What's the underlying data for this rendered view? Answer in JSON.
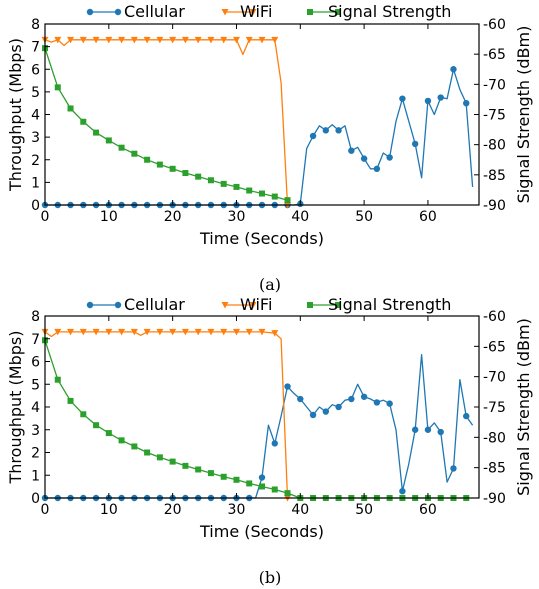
{
  "colors": {
    "cellular": "#1f77b4",
    "wifi": "#ff7f0e",
    "signal": "#2ca02c"
  },
  "chart_data": [
    {
      "type": "line",
      "caption": "(a)",
      "xlabel": "Time (Seconds)",
      "ylabel": "Throughput (Mbps)",
      "y2label": "Signal Strength (dBm)",
      "xlim": [
        0,
        68
      ],
      "ylim": [
        0,
        8
      ],
      "y2lim": [
        -90,
        -60
      ],
      "xticks": [
        "0",
        "10",
        "20",
        "30",
        "40",
        "50",
        "60"
      ],
      "yticks": [
        "0",
        "1",
        "2",
        "3",
        "4",
        "5",
        "6",
        "7",
        "8"
      ],
      "y2ticks": [
        "-90",
        "-85",
        "-80",
        "-75",
        "-70",
        "-65",
        "-60"
      ],
      "legend_position": "top",
      "series": [
        {
          "name": "Cellular",
          "axis": "left",
          "marker": "circle",
          "x": [
            0,
            2,
            4,
            6,
            8,
            10,
            12,
            14,
            16,
            18,
            20,
            22,
            24,
            26,
            28,
            30,
            32,
            34,
            36,
            38,
            39,
            40,
            41,
            42,
            43,
            44,
            45,
            46,
            47,
            48,
            49,
            50,
            51,
            52,
            53,
            54,
            55,
            56,
            57,
            58,
            59,
            60,
            61,
            62,
            63,
            64,
            65,
            66,
            67
          ],
          "y": [
            0,
            0,
            0,
            0,
            0,
            0,
            0,
            0,
            0,
            0,
            0,
            0,
            0,
            0,
            0,
            0,
            0,
            0,
            0,
            0,
            0,
            0.05,
            2.5,
            3.05,
            3.5,
            3.3,
            3.55,
            3.3,
            3.5,
            2.4,
            2.55,
            2.05,
            1.6,
            1.6,
            2.3,
            2.1,
            3.7,
            4.7,
            3.7,
            2.7,
            1.2,
            4.6,
            4.0,
            4.75,
            4.7,
            6.0,
            5.1,
            4.5,
            0.8
          ]
        },
        {
          "name": "WiFi",
          "axis": "left",
          "marker": "triangle-down",
          "x": [
            0,
            1,
            2,
            3,
            4,
            6,
            8,
            10,
            12,
            14,
            16,
            18,
            20,
            22,
            24,
            26,
            28,
            29,
            30,
            31,
            32,
            33,
            34,
            35,
            36,
            37,
            38
          ],
          "y": [
            7.3,
            7.2,
            7.3,
            7.05,
            7.3,
            7.3,
            7.3,
            7.3,
            7.3,
            7.3,
            7.3,
            7.3,
            7.3,
            7.3,
            7.3,
            7.3,
            7.3,
            7.3,
            7.3,
            6.65,
            7.3,
            7.3,
            7.3,
            7.3,
            7.3,
            5.4,
            0
          ]
        },
        {
          "name": "Signal Strength",
          "axis": "right",
          "marker": "square",
          "x": [
            0,
            2,
            4,
            6,
            8,
            10,
            12,
            14,
            16,
            18,
            20,
            22,
            24,
            26,
            28,
            30,
            32,
            34,
            36,
            38
          ],
          "y": [
            -64,
            -70.5,
            -74,
            -76.2,
            -78,
            -79.3,
            -80.5,
            -81.5,
            -82.5,
            -83.3,
            -84,
            -84.7,
            -85.3,
            -85.9,
            -86.5,
            -87,
            -87.6,
            -88.1,
            -88.6,
            -89.2
          ]
        }
      ]
    },
    {
      "type": "line",
      "caption": "(b)",
      "xlabel": "Time (Seconds)",
      "ylabel": "Throughput (Mbps)",
      "y2label": "Signal Strength (dBm)",
      "xlim": [
        0,
        68
      ],
      "ylim": [
        0,
        8
      ],
      "y2lim": [
        -90,
        -60
      ],
      "xticks": [
        "0",
        "10",
        "20",
        "30",
        "40",
        "50",
        "60"
      ],
      "yticks": [
        "0",
        "1",
        "2",
        "3",
        "4",
        "5",
        "6",
        "7",
        "8"
      ],
      "y2ticks": [
        "-90",
        "-85",
        "-80",
        "-75",
        "-70",
        "-65",
        "-60"
      ],
      "legend_position": "top",
      "series": [
        {
          "name": "Cellular",
          "axis": "left",
          "marker": "circle",
          "x": [
            0,
            2,
            4,
            6,
            8,
            10,
            12,
            14,
            16,
            18,
            20,
            22,
            24,
            26,
            28,
            30,
            32,
            33,
            34,
            35,
            36,
            37,
            38,
            39,
            40,
            41,
            42,
            43,
            44,
            45,
            46,
            47,
            48,
            49,
            50,
            51,
            52,
            53,
            54,
            55,
            56,
            57,
            58,
            59,
            60,
            61,
            62,
            63,
            64,
            65,
            66,
            67
          ],
          "y": [
            0,
            0,
            0,
            0,
            0,
            0,
            0,
            0,
            0,
            0,
            0,
            0,
            0,
            0,
            0,
            0,
            0,
            0.0,
            0.9,
            3.2,
            2.4,
            3.6,
            4.9,
            4.6,
            4.35,
            4.0,
            3.65,
            4.0,
            3.8,
            4.1,
            4.0,
            4.3,
            4.35,
            5.0,
            4.45,
            4.35,
            4.2,
            4.3,
            4.15,
            3.0,
            0.3,
            1.5,
            3.0,
            6.3,
            3.0,
            3.3,
            2.9,
            0.7,
            1.3,
            5.2,
            3.6,
            3.2
          ]
        },
        {
          "name": "WiFi",
          "axis": "left",
          "marker": "triangle-down",
          "x": [
            0,
            1,
            2,
            4,
            6,
            8,
            10,
            12,
            14,
            15,
            16,
            18,
            20,
            22,
            24,
            26,
            28,
            30,
            32,
            34,
            36,
            37,
            38
          ],
          "y": [
            7.3,
            7.1,
            7.3,
            7.3,
            7.3,
            7.3,
            7.3,
            7.3,
            7.3,
            7.15,
            7.3,
            7.3,
            7.3,
            7.3,
            7.3,
            7.3,
            7.3,
            7.3,
            7.3,
            7.3,
            7.25,
            7.0,
            0
          ]
        },
        {
          "name": "Signal Strength",
          "axis": "right",
          "marker": "square",
          "x": [
            0,
            2,
            4,
            6,
            8,
            10,
            12,
            14,
            16,
            18,
            20,
            22,
            24,
            26,
            28,
            30,
            32,
            34,
            36,
            38,
            40,
            42,
            44,
            46,
            48,
            50,
            52,
            54,
            56,
            58,
            60,
            62,
            64,
            66
          ],
          "y": [
            -64,
            -70.5,
            -74,
            -76.2,
            -78,
            -79.3,
            -80.5,
            -81.5,
            -82.5,
            -83.3,
            -84,
            -84.7,
            -85.3,
            -85.9,
            -86.5,
            -87,
            -87.6,
            -88.1,
            -88.6,
            -89.2,
            -90,
            -90,
            -90,
            -90,
            -90,
            -90,
            -90,
            -90,
            -90,
            -90,
            -90,
            -90,
            -90,
            -90
          ]
        }
      ]
    }
  ]
}
